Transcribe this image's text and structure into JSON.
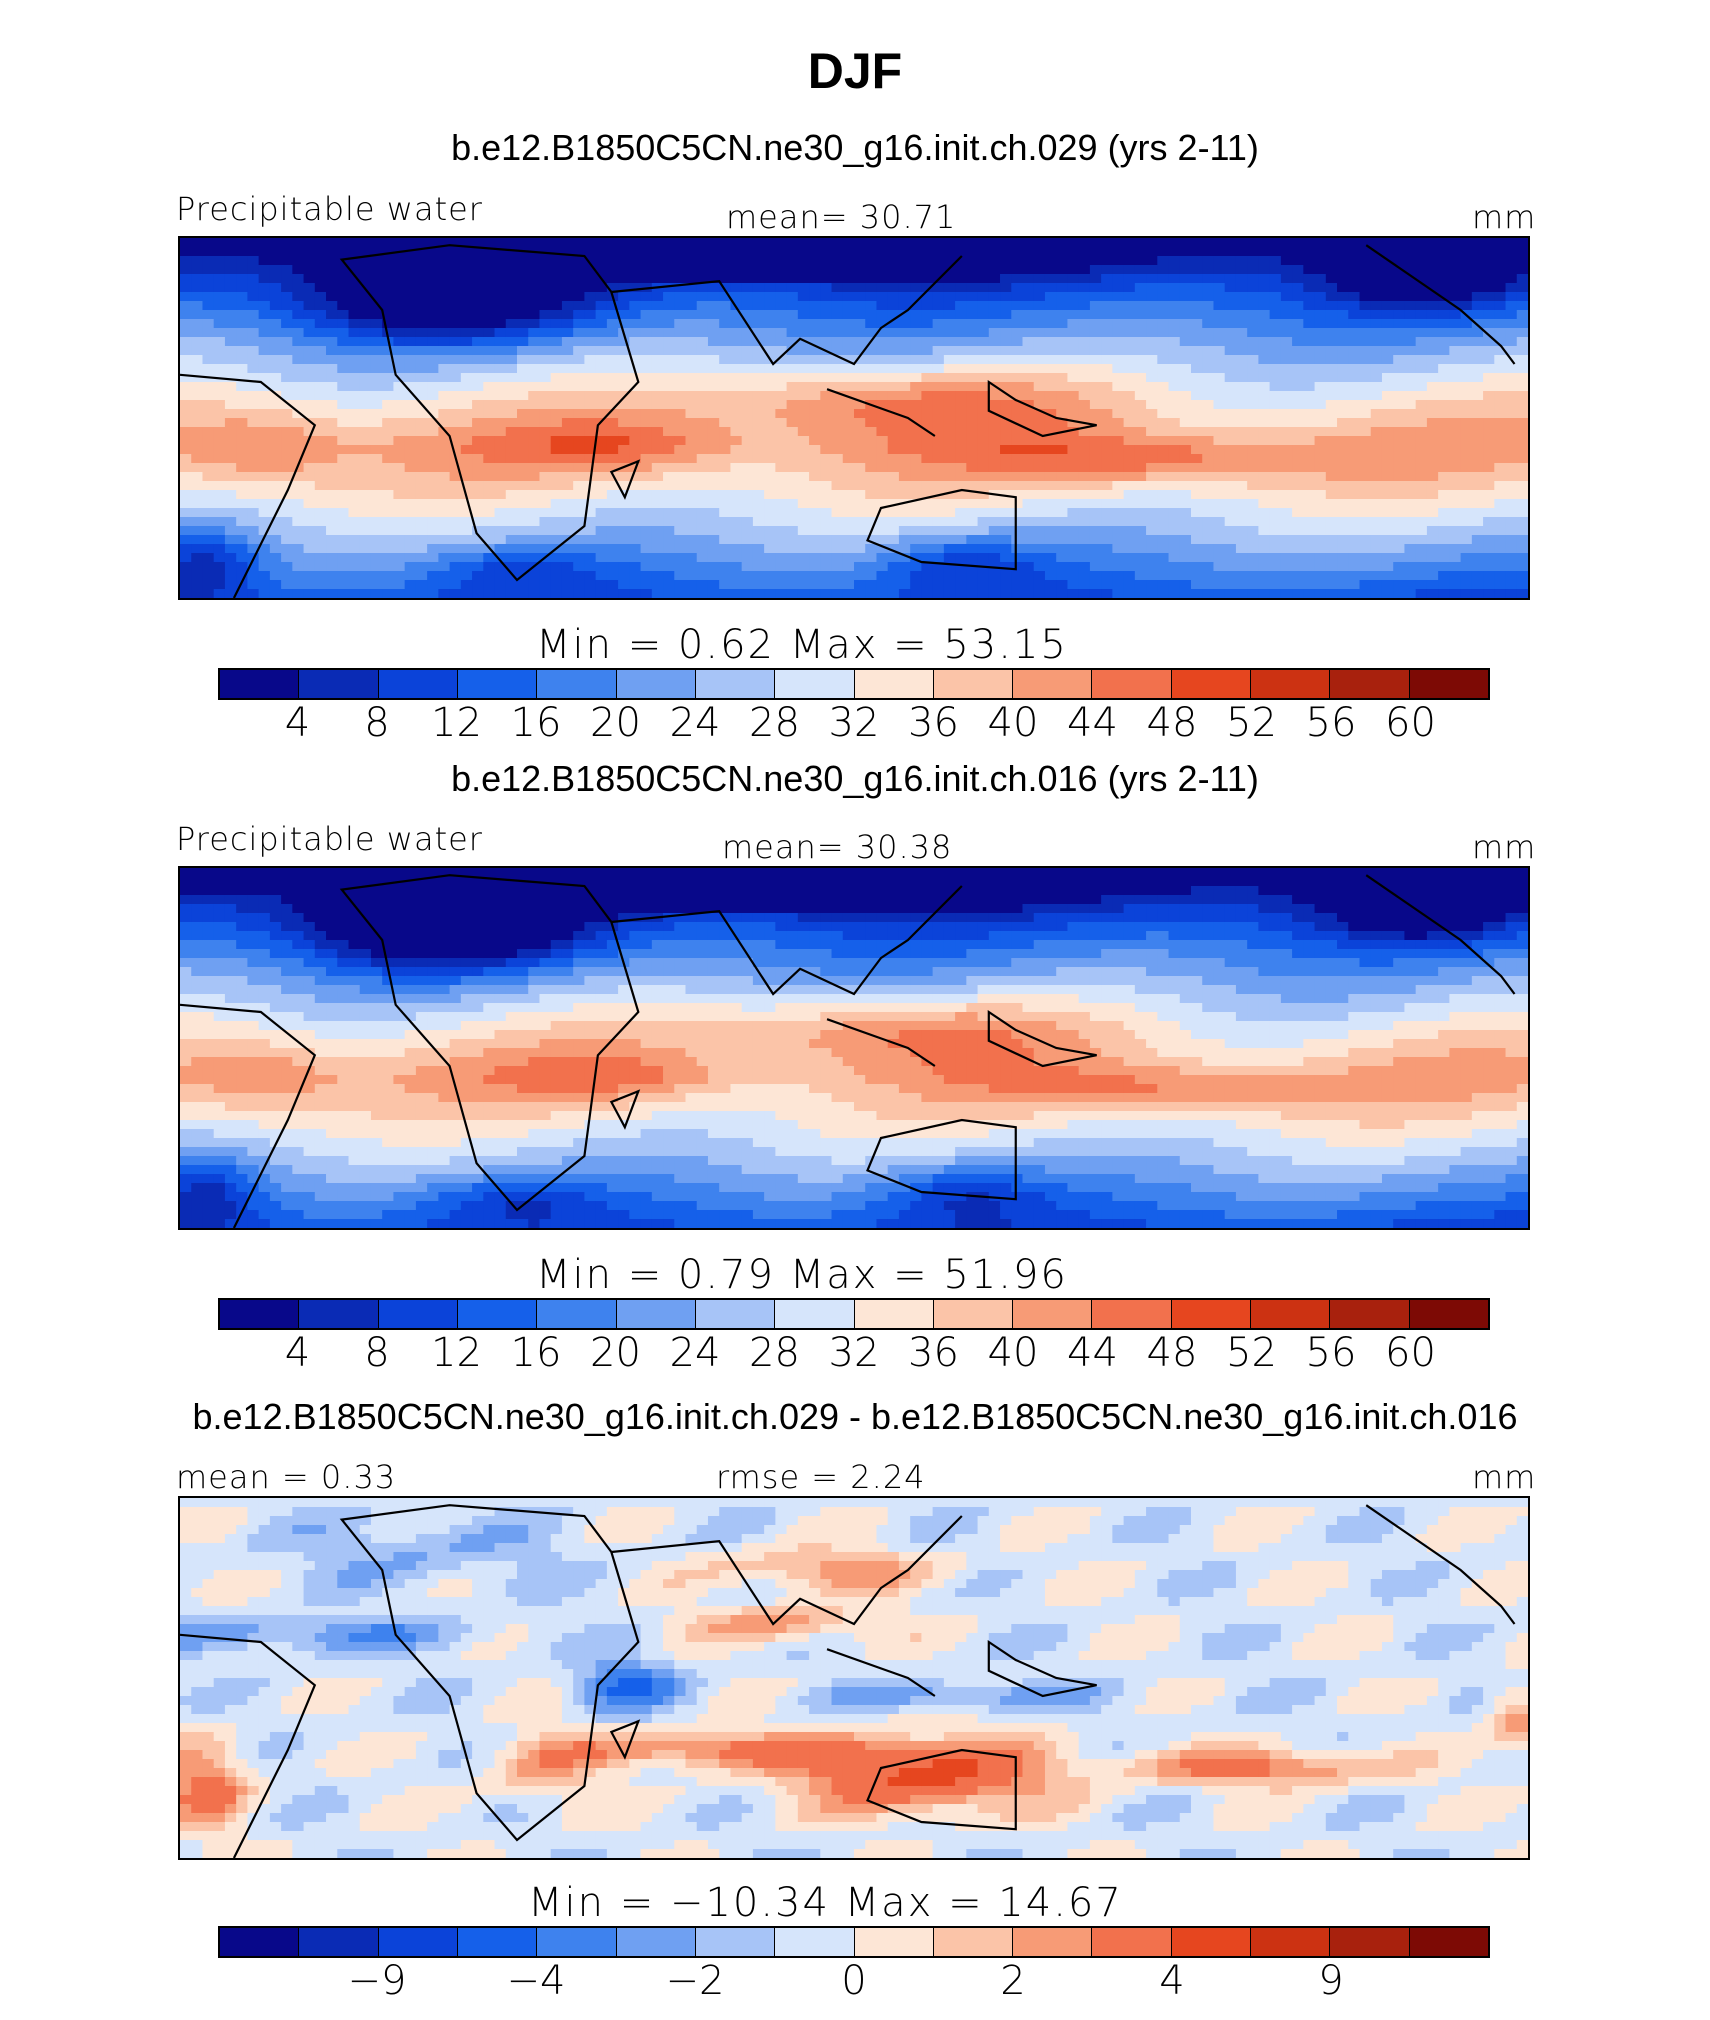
{
  "figure": {
    "season": "DJF"
  },
  "colors": [
    "#08088a",
    "#0a2bb5",
    "#0b43d9",
    "#1560ea",
    "#3e82ee",
    "#6fa0f2",
    "#a7c4f7",
    "#d6e5fb",
    "#fde6d6",
    "#fbc4a8",
    "#f79b76",
    "#f2714d",
    "#e6461f",
    "#cc3212",
    "#a8210d",
    "#7d0a05"
  ],
  "chart_data": [
    {
      "type": "heatmap",
      "title": "b.e12.B1850C5CN.ne30_g16.init.ch.029 (yrs 2-11)",
      "left_label": "Precipitable  water",
      "center_label": "mean=  30.71",
      "right_label": "mm",
      "min_label": "Min  =    0.62  Max  =   53.15",
      "min": 0.62,
      "max": 53.15,
      "mean": 30.71,
      "colorbar_ticks": [
        "4",
        "8",
        "12",
        "16",
        "20",
        "24",
        "28",
        "32",
        "36",
        "40",
        "44",
        "48",
        "52",
        "56",
        "60"
      ]
    },
    {
      "type": "heatmap",
      "title": "b.e12.B1850C5CN.ne30_g16.init.ch.016 (yrs 2-11)",
      "left_label": "Precipitable  water",
      "center_label": "mean=  30.38",
      "right_label": "mm",
      "min_label": "Min  =    0.79  Max  =   51.96",
      "min": 0.79,
      "max": 51.96,
      "mean": 30.38,
      "colorbar_ticks": [
        "4",
        "8",
        "12",
        "16",
        "20",
        "24",
        "28",
        "32",
        "36",
        "40",
        "44",
        "48",
        "52",
        "56",
        "60"
      ]
    },
    {
      "type": "heatmap",
      "title": "b.e12.B1850C5CN.ne30_g16.init.ch.029 - b.e12.B1850C5CN.ne30_g16.init.ch.016",
      "left_label": "mean  =    0.33",
      "center_label": "rmse  =    2.24",
      "right_label": "mm",
      "min_label": "Min  = −10.34  Max  =   14.67",
      "min": -10.34,
      "max": 14.67,
      "mean": 0.33,
      "rmse": 2.24,
      "colorbar_ticks": [
        "−9",
        "−4",
        "−2",
        "0",
        "2",
        "4",
        "9"
      ],
      "colorbar_tick_boundaries": [
        2,
        4,
        6,
        8,
        10,
        12,
        14
      ]
    }
  ]
}
